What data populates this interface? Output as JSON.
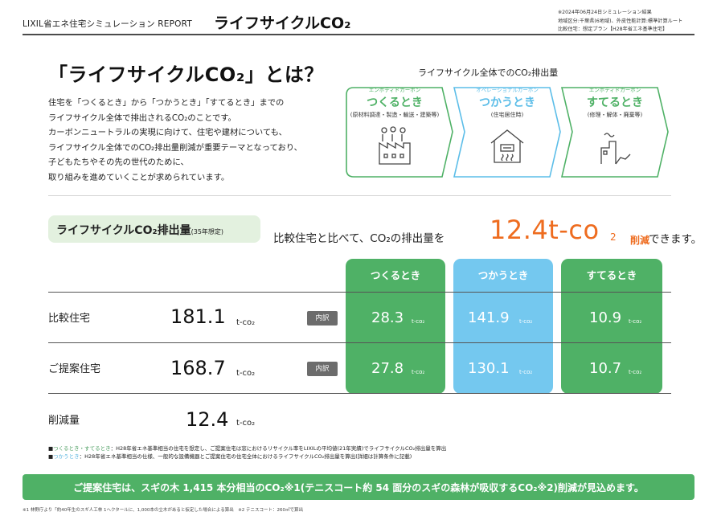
{
  "header": {
    "brand": "LIXIL省エネ住宅シミュレーション REPORT",
    "title": "ライフサイクルCO₂",
    "meta": [
      "※2024年06月24日シミュレーション結果",
      "地域区分:千葉県(6地域)、外皮性能計算:標準計算ルート",
      "比較住宅：想定プラン【H28年省エネ基準住宅】"
    ]
  },
  "intro": {
    "title": "「ライフサイクルCO₂」とは？",
    "lines": [
      "住宅を「つくるとき」から「つかうとき」「すてるとき」までの",
      "ライフサイクル全体で排出されるCO₂のことです。",
      "カーボンニュートラルの実現に向けて、住宅や建材についても、",
      "ライフサイクル全体でのCO₂排出量削減が重要テーマとなっており、",
      "子どもたちやその先の世代のために、",
      "取り組みを進めていくことが求められています。"
    ]
  },
  "flow": {
    "title": "ライフサイクル全体でのCO₂排出量",
    "steps": [
      {
        "tag": "エンボディドカーボン",
        "name": "つくるとき",
        "sub": "(原材料調達・製造・輸送・建築等)",
        "icon": "factory-icon",
        "color": "#4fb166"
      },
      {
        "tag": "オペレーショナルカーボン",
        "name": "つかうとき",
        "sub": "(住宅居住時)",
        "icon": "house-heater-icon",
        "color": "#5bbde8"
      },
      {
        "tag": "エンボディドカーボン",
        "name": "すてるとき",
        "sub": "(修理・解体・廃棄等)",
        "icon": "demolition-icon",
        "color": "#4fb166"
      }
    ]
  },
  "summary": {
    "label": "ライフサイクルCO₂排出量",
    "label_note": "(35年想定)",
    "compare_text": "比較住宅と比べて、CO₂の排出量を",
    "reduction_value": "12.4t-co",
    "reduction_sub": "2",
    "reduction_word": "削減",
    "tail": "できます。",
    "accent_color": "#ee6c1f"
  },
  "table": {
    "columns": [
      {
        "label": "つくるとき",
        "color": "#4fb166"
      },
      {
        "label": "つかうとき",
        "color": "#74c8ef"
      },
      {
        "label": "すてるとき",
        "color": "#4fb166"
      }
    ],
    "badge": "内訳",
    "unit": "t-co₂",
    "rows": [
      {
        "label": "比較住宅",
        "total": "181.1",
        "values": [
          "28.3",
          "141.9",
          "10.9"
        ]
      },
      {
        "label": "ご提案住宅",
        "total": "168.7",
        "values": [
          "27.8",
          "130.1",
          "10.7"
        ]
      }
    ],
    "reduction": {
      "label": "削減量",
      "total": "12.4"
    }
  },
  "notes": {
    "n1_prefix": "■",
    "n1_colored": "つくるとき・すてるとき",
    "n1_text": "：H28年省エネ基準相当の住宅を想定し、ご提案住宅は窓におけるリサイクル率をLIXILの平均値(21年実績)でライフサイクルCO₂排出量を算出",
    "n2_prefix": "■",
    "n2_colored": "つかうとき",
    "n2_text": "：H28年省エネ基準相当の仕様、一般的な設備機器とご提案住宅の住宅全体におけるライフサイクルCO₂排出量を算出(詳細は計算条件に記載)"
  },
  "banner": {
    "text": "ご提案住宅は、スギの木 1,415 本分相当のCO₂※1(テニスコート約 54 面分のスギの森林が吸収するCO₂※2)削減が見込めます。"
  },
  "footnote": "※1 林野庁より「約40年生のスギ人工林 1ヘクタールに、1,000本の立木があると仮定した場合による算出　※2 テニスコート：260㎡で算出"
}
